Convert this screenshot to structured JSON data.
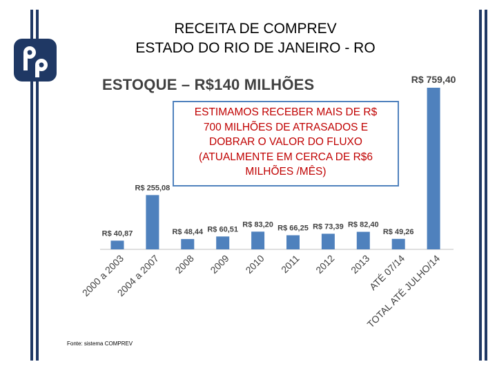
{
  "slide": {
    "title_line1": "RECEITA DE COMPREV",
    "title_line2": "ESTADO DO RIO DE JANEIRO - RO",
    "stock_label": "ESTOQUE – R$140 MILHÕES",
    "callout_text": "ESTIMAMOS RECEBER MAIS DE R$ 700 MILHÕES DE ATRASADOS E DOBRAR  O VALOR DO FLUXO (ATUALMENTE EM CERCA DE R$6 MILHÕES /MÊS)",
    "source": "Fonte: sistema COMPREV"
  },
  "colors": {
    "bar": "#4f81bd",
    "axis": "#bfbfbf",
    "border": "#1f3864",
    "callout_text": "#c00000"
  },
  "chart_data": {
    "type": "bar",
    "categories": [
      "2000 a 2003",
      "2004 a 2007",
      "2008",
      "2009",
      "2010",
      "2011",
      "2012",
      "2013",
      "ATÉ 07/14",
      "TOTAL ATÉ JULHO/14"
    ],
    "values": [
      40.87,
      255.08,
      48.44,
      60.51,
      83.2,
      66.25,
      73.39,
      82.4,
      49.26,
      759.4
    ],
    "data_labels": [
      "R$ 40,87",
      "R$ 255,08",
      "R$ 48,44",
      "R$ 60,51",
      "R$ 83,20",
      "R$ 66,25",
      "R$ 73,39",
      "R$ 82,40",
      "R$ 49,26",
      "R$ 759,40"
    ],
    "ylim": [
      0,
      759.4
    ],
    "grid": false,
    "legend": "none",
    "yaxis_visible": false
  }
}
